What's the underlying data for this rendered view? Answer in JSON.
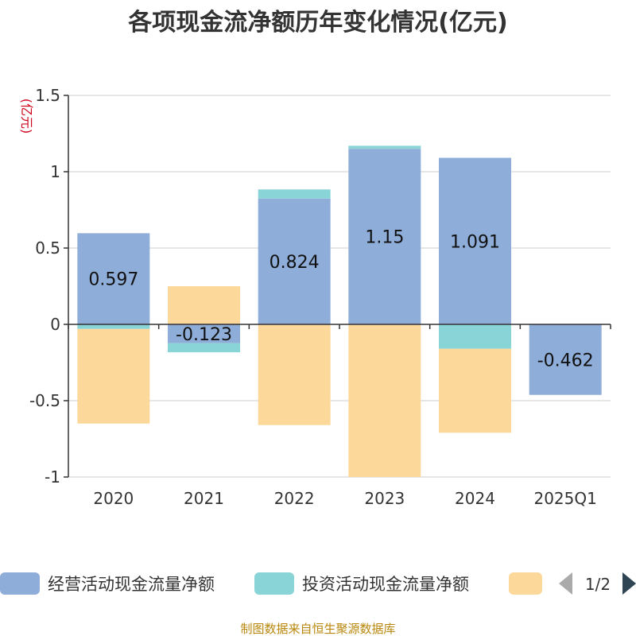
{
  "chart_data": {
    "type": "bar",
    "stacked": true,
    "title": "各项现金流净额历年变化情况(亿元)",
    "unit_label": "(亿元)",
    "categories": [
      "2020",
      "2021",
      "2022",
      "2023",
      "2024",
      "2025Q1"
    ],
    "ylim": [
      -1,
      1.5
    ],
    "yticks": [
      1.5,
      1,
      0.5,
      0,
      -0.5,
      -1
    ],
    "ytick_labels": [
      "1.5",
      "1",
      "0.5",
      "0",
      "-0.5",
      "-1"
    ],
    "grid": true,
    "legend_position": "bottom",
    "series": [
      {
        "name": "经营活动现金流量净额",
        "color": "#8eadd8",
        "values": [
          0.597,
          -0.123,
          0.824,
          1.15,
          1.091,
          -0.462
        ],
        "data_labels": [
          "0.597",
          "-0.123",
          "0.824",
          "1.15",
          "1.091",
          "-0.462"
        ]
      },
      {
        "name": "投资活动现金流量净额",
        "color": "#88d4d6",
        "values": [
          -0.03,
          -0.06,
          0.06,
          0.02,
          -0.16,
          0
        ]
      },
      {
        "name": "",
        "color": "#fdd89b",
        "values": [
          -0.62,
          0.25,
          -0.66,
          -1.0,
          -0.55,
          0
        ]
      }
    ]
  },
  "legend": {
    "page_indicator": "1/2",
    "prev_color": "#aaaaaa",
    "next_color": "#2f4554"
  },
  "source_text": "制图数据来自恒生聚源数据库"
}
